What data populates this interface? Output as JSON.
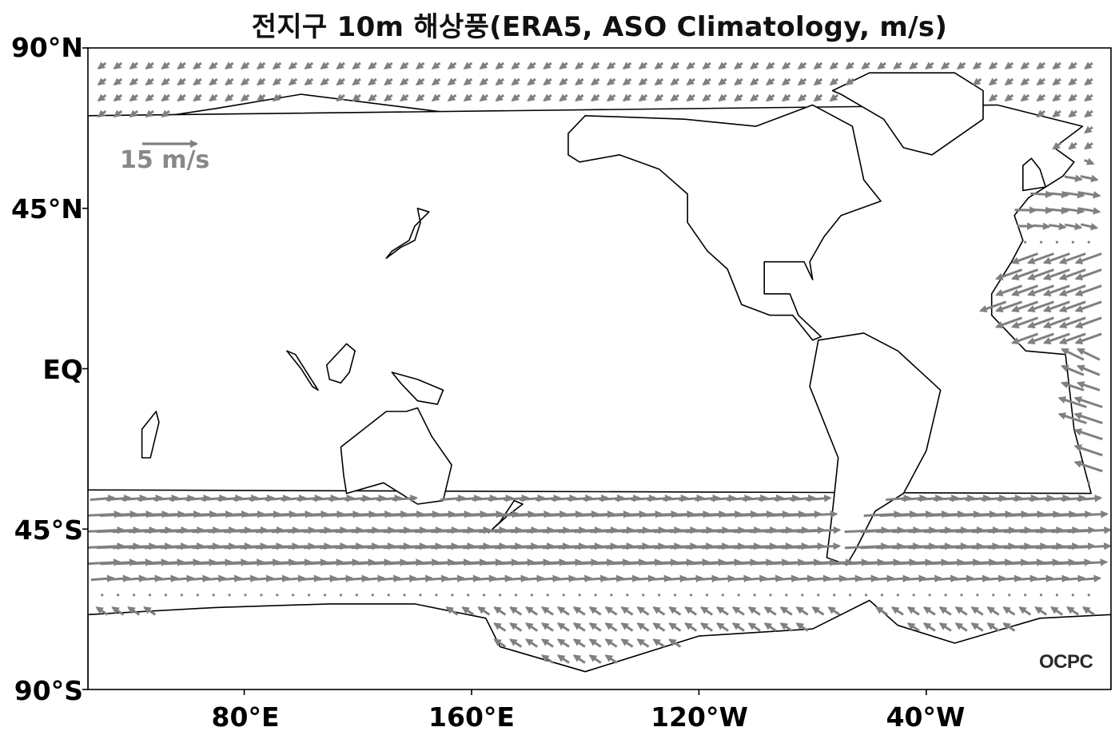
{
  "title": "전지구 10m 해상풍(ERA5, ASO Climatology, m/s)",
  "y_axis": {
    "ticks": [
      "90°N",
      "45°N",
      "EQ",
      "45°S",
      "90°S"
    ]
  },
  "x_axis": {
    "ticks": [
      "80°E",
      "160°E",
      "120°W",
      "40°W"
    ]
  },
  "reference_vector": {
    "label": "15 m/s",
    "magnitude": 15,
    "color": "#808080"
  },
  "logo": {
    "text": "OCPC"
  },
  "colors": {
    "vectors": "#808080",
    "coastline": "#000000",
    "background": "#ffffff"
  },
  "map": {
    "projection": "PlateCarree",
    "lon_range": [
      25,
      385
    ],
    "lat_range": [
      -90,
      90
    ]
  }
}
